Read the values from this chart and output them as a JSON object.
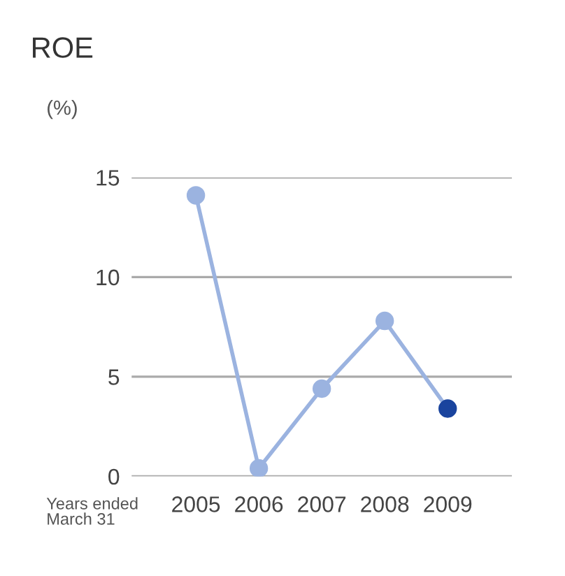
{
  "chart_data": {
    "type": "line",
    "title": "ROE",
    "ylabel": "(%)",
    "categories": [
      "2005",
      "2006",
      "2007",
      "2008",
      "2009"
    ],
    "series": [
      {
        "color": "#9bb3e0",
        "colors": [
          "#9bb3e0",
          "#9bb3e0",
          "#9bb3e0",
          "#9bb3e0",
          "#1a449e"
        ],
        "values": [
          14.1,
          0.4,
          4.4,
          7.8,
          3.4
        ]
      }
    ],
    "ylim": [
      0,
      15
    ],
    "yticks": [
      0,
      5,
      10,
      15
    ],
    "grid": "y",
    "marker": "circle",
    "line_style": "solid",
    "annotations": [
      "Years ended\nMarch 31"
    ]
  }
}
